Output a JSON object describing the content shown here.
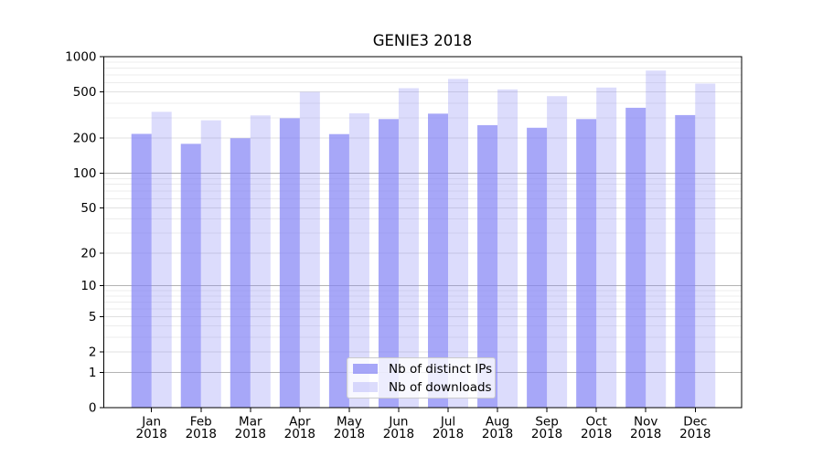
{
  "colors": {
    "bar_base": "#8282f5",
    "bar_distinct_ips": "rgba(130,130,245,0.70)",
    "bar_downloads": "rgba(130,130,245,0.28)",
    "grid_strong": "#b3b3b3",
    "grid_mid": "#e0e0e0",
    "grid_minor": "#ececec",
    "axis": "#000000",
    "text": "#000000",
    "legend_border": "#cbcbcb"
  },
  "chart_data": {
    "type": "bar",
    "title": "GENIE3 2018",
    "x_year": "2018",
    "categories": [
      "Jan",
      "Feb",
      "Mar",
      "Apr",
      "May",
      "Jun",
      "Jul",
      "Aug",
      "Sep",
      "Oct",
      "Nov",
      "Dec"
    ],
    "series": [
      {
        "name": "Nb of distinct IPs",
        "color": "rgba(130,130,245,0.70)",
        "values": [
          218,
          179,
          200,
          297,
          217,
          292,
          325,
          259,
          246,
          292,
          365,
          316
        ]
      },
      {
        "name": "Nb of downloads",
        "color": "rgba(130,130,245,0.28)",
        "values": [
          337,
          285,
          314,
          500,
          327,
          537,
          645,
          524,
          459,
          544,
          760,
          588
        ]
      }
    ],
    "yscale": "log(value+1)",
    "ylim": [
      0,
      1000
    ],
    "yticks": [
      0,
      1,
      2,
      5,
      10,
      20,
      50,
      100,
      200,
      500,
      1000
    ],
    "xlabel": "",
    "ylabel": "",
    "grid": "on",
    "legend_position": "lower center"
  }
}
